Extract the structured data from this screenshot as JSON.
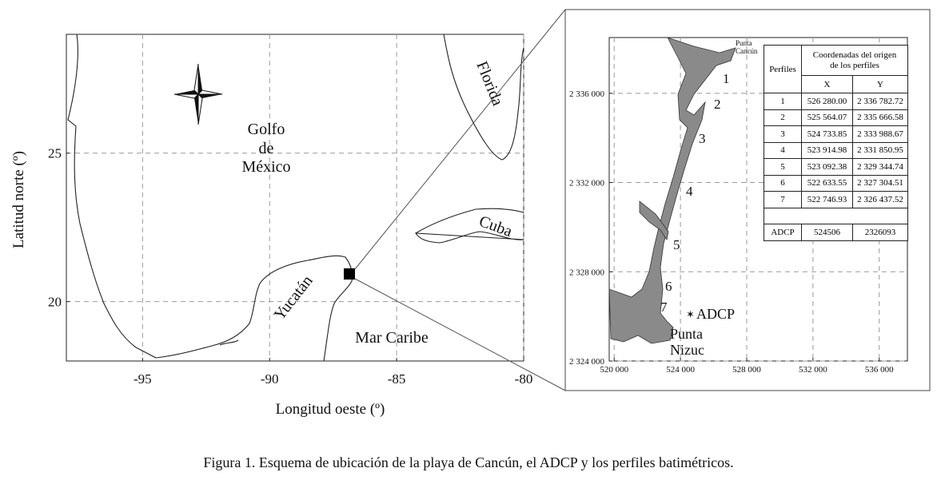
{
  "left_map": {
    "xlabel": "Longitud oeste (º)",
    "ylabel": "Latitud norte (º)",
    "xlim": [
      -98,
      -80
    ],
    "ylim": [
      18,
      29
    ],
    "xticks": [
      -95,
      -90,
      -85,
      -80
    ],
    "yticks": [
      20,
      25
    ],
    "labels": {
      "gulf": [
        "Golfo",
        "de",
        "México"
      ],
      "florida": "Florida",
      "cuba": "Cuba",
      "yucatan": "Yucatán",
      "caribbean": "Mar Caribe"
    }
  },
  "right_map": {
    "xlim": [
      519700,
      537700
    ],
    "ylim": [
      2324000,
      2338500
    ],
    "xticks": [
      {
        "value": 520000,
        "label": "520 000"
      },
      {
        "value": 524000,
        "label": "524 000"
      },
      {
        "value": 528000,
        "label": "528 000"
      },
      {
        "value": 532000,
        "label": "532 000"
      },
      {
        "value": 536000,
        "label": "536 000"
      }
    ],
    "yticks": [
      {
        "value": 2324000,
        "label": "2 324 000"
      },
      {
        "value": 2328000,
        "label": "2 328 000"
      },
      {
        "value": 2332000,
        "label": "2 332 000"
      },
      {
        "value": 2336000,
        "label": "2 336 000"
      }
    ],
    "labels": {
      "punta_cancun": [
        "Punta",
        "Cancún"
      ],
      "profiles": [
        "1",
        "2",
        "3",
        "4",
        "5",
        "6",
        "7"
      ],
      "adcp": "ADCP",
      "punta_nizuc": [
        "Punta",
        "Nizuc"
      ]
    }
  },
  "table": {
    "headers": {
      "perfiles": "Perfiles",
      "coords": [
        "Coordenadas del origen",
        "de los perfiles"
      ],
      "x": "X",
      "y": "Y"
    },
    "rows": [
      [
        1,
        "526 280.00",
        "2 336 782.72"
      ],
      [
        2,
        "525 564.07",
        "2 335 666.58"
      ],
      [
        3,
        "524 733.85",
        "2 333 988.67"
      ],
      [
        4,
        "523 914.98",
        "2 331 850.95"
      ],
      [
        5,
        "523 092.38",
        "2 329 344.74"
      ],
      [
        6,
        "522 633.55",
        "2 327 304.51"
      ],
      [
        7,
        "522 746.93",
        "2 326 437.52"
      ]
    ],
    "adcp": [
      "ADCP",
      524506,
      2326093
    ]
  },
  "caption": "Figura 1. Esquema de ubicación de la playa de Cancún, el ADCP y los perfiles batimétricos."
}
